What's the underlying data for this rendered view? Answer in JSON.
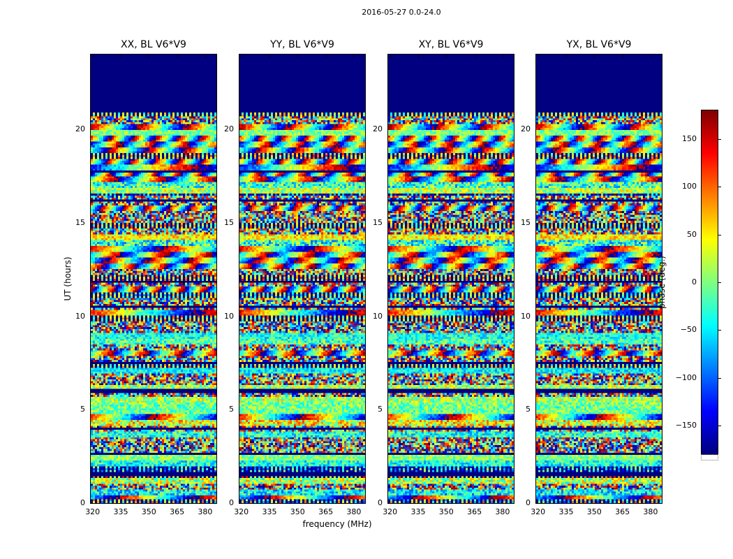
{
  "figure": {
    "title": "2016-05-27 0.0-24.0",
    "background": "#ffffff"
  },
  "chart_data": {
    "type": "heatmap",
    "title": "2016-05-27 0.0-24.0",
    "panels": [
      {
        "id": "XX",
        "title": "XX, BL V6*V9"
      },
      {
        "id": "YY",
        "title": "YY, BL V6*V9"
      },
      {
        "id": "XY",
        "title": "XY, BL V6*V9"
      },
      {
        "id": "YX",
        "title": "YX, BL V6*V9"
      }
    ],
    "xlabel": "frequency (MHz)",
    "ylabel": "UT (hours)",
    "xlim": [
      319,
      386
    ],
    "ylim": [
      0,
      24
    ],
    "xticks": [
      320,
      335,
      350,
      365,
      380
    ],
    "yticks": [
      0,
      5,
      10,
      15,
      20
    ],
    "colorbar": {
      "label": "phase (deg.)",
      "vmin": -180,
      "vmax": 180,
      "ticks": [
        150,
        100,
        50,
        0,
        -50,
        -100,
        -150
      ],
      "colormap": "jet"
    },
    "flagged_region": {
      "ut_start": 20.9,
      "ut_end": 24.0,
      "note": "solid dark navy block, no valid data"
    },
    "dark_line_uts": [
      17.7,
      16.2,
      11.85,
      10.5,
      7.5,
      6.0,
      4.0,
      2.6,
      1.55
    ],
    "grid": {
      "n_freq": 60,
      "n_time": 232
    },
    "noise": {
      "seed": 911,
      "description": "pseudo-random interferometric phase fringes and noise with horizontal banding aligned across all four polarization panels"
    }
  }
}
